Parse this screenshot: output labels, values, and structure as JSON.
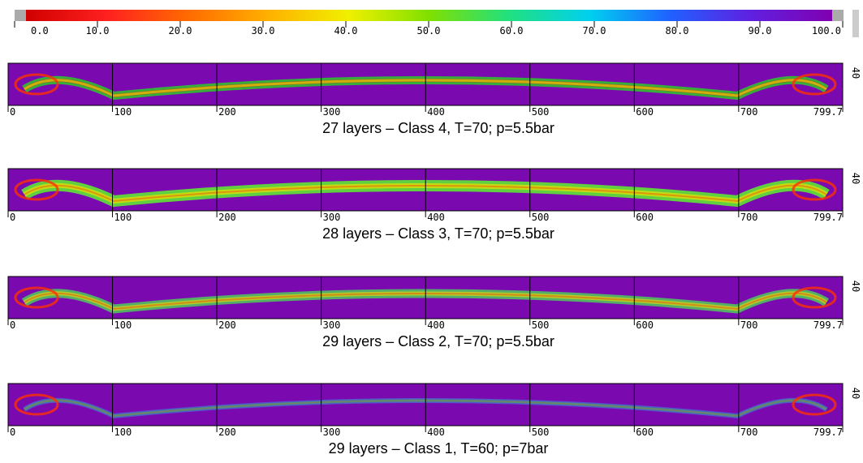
{
  "colorbar": {
    "ticks": [
      {
        "value": 0,
        "label": "0.0"
      },
      {
        "value": 10,
        "label": "10.0"
      },
      {
        "value": 20,
        "label": "20.0"
      },
      {
        "value": 30,
        "label": "30.0"
      },
      {
        "value": 40,
        "label": "40.0"
      },
      {
        "value": 50,
        "label": "50.0"
      },
      {
        "value": 60,
        "label": "60.0"
      },
      {
        "value": 70,
        "label": "70.0"
      },
      {
        "value": 80,
        "label": "80.0"
      },
      {
        "value": 90,
        "label": "90.0"
      },
      {
        "value": 100,
        "label": "100.0"
      }
    ]
  },
  "panels": [
    {
      "caption": "27 layers – Class 4, T=70; p=5.5bar",
      "ylabel": "40",
      "xticks": [
        0,
        100,
        200,
        300,
        400,
        500,
        600,
        700,
        799.7
      ]
    },
    {
      "caption": "28 layers – Class 3, T=70; p=5.5bar",
      "ylabel": "40",
      "xticks": [
        0,
        100,
        200,
        300,
        400,
        500,
        600,
        700,
        799.7
      ]
    },
    {
      "caption": "29 layers – Class 2, T=70; p=5.5bar",
      "ylabel": "40",
      "xticks": [
        0,
        100,
        200,
        300,
        400,
        500,
        600,
        700,
        799.7
      ]
    },
    {
      "caption": "29 layers – Class 1, T=60; p=7bar",
      "ylabel": "40",
      "xticks": [
        0,
        100,
        200,
        300,
        400,
        500,
        600,
        700,
        799.7
      ]
    }
  ]
}
